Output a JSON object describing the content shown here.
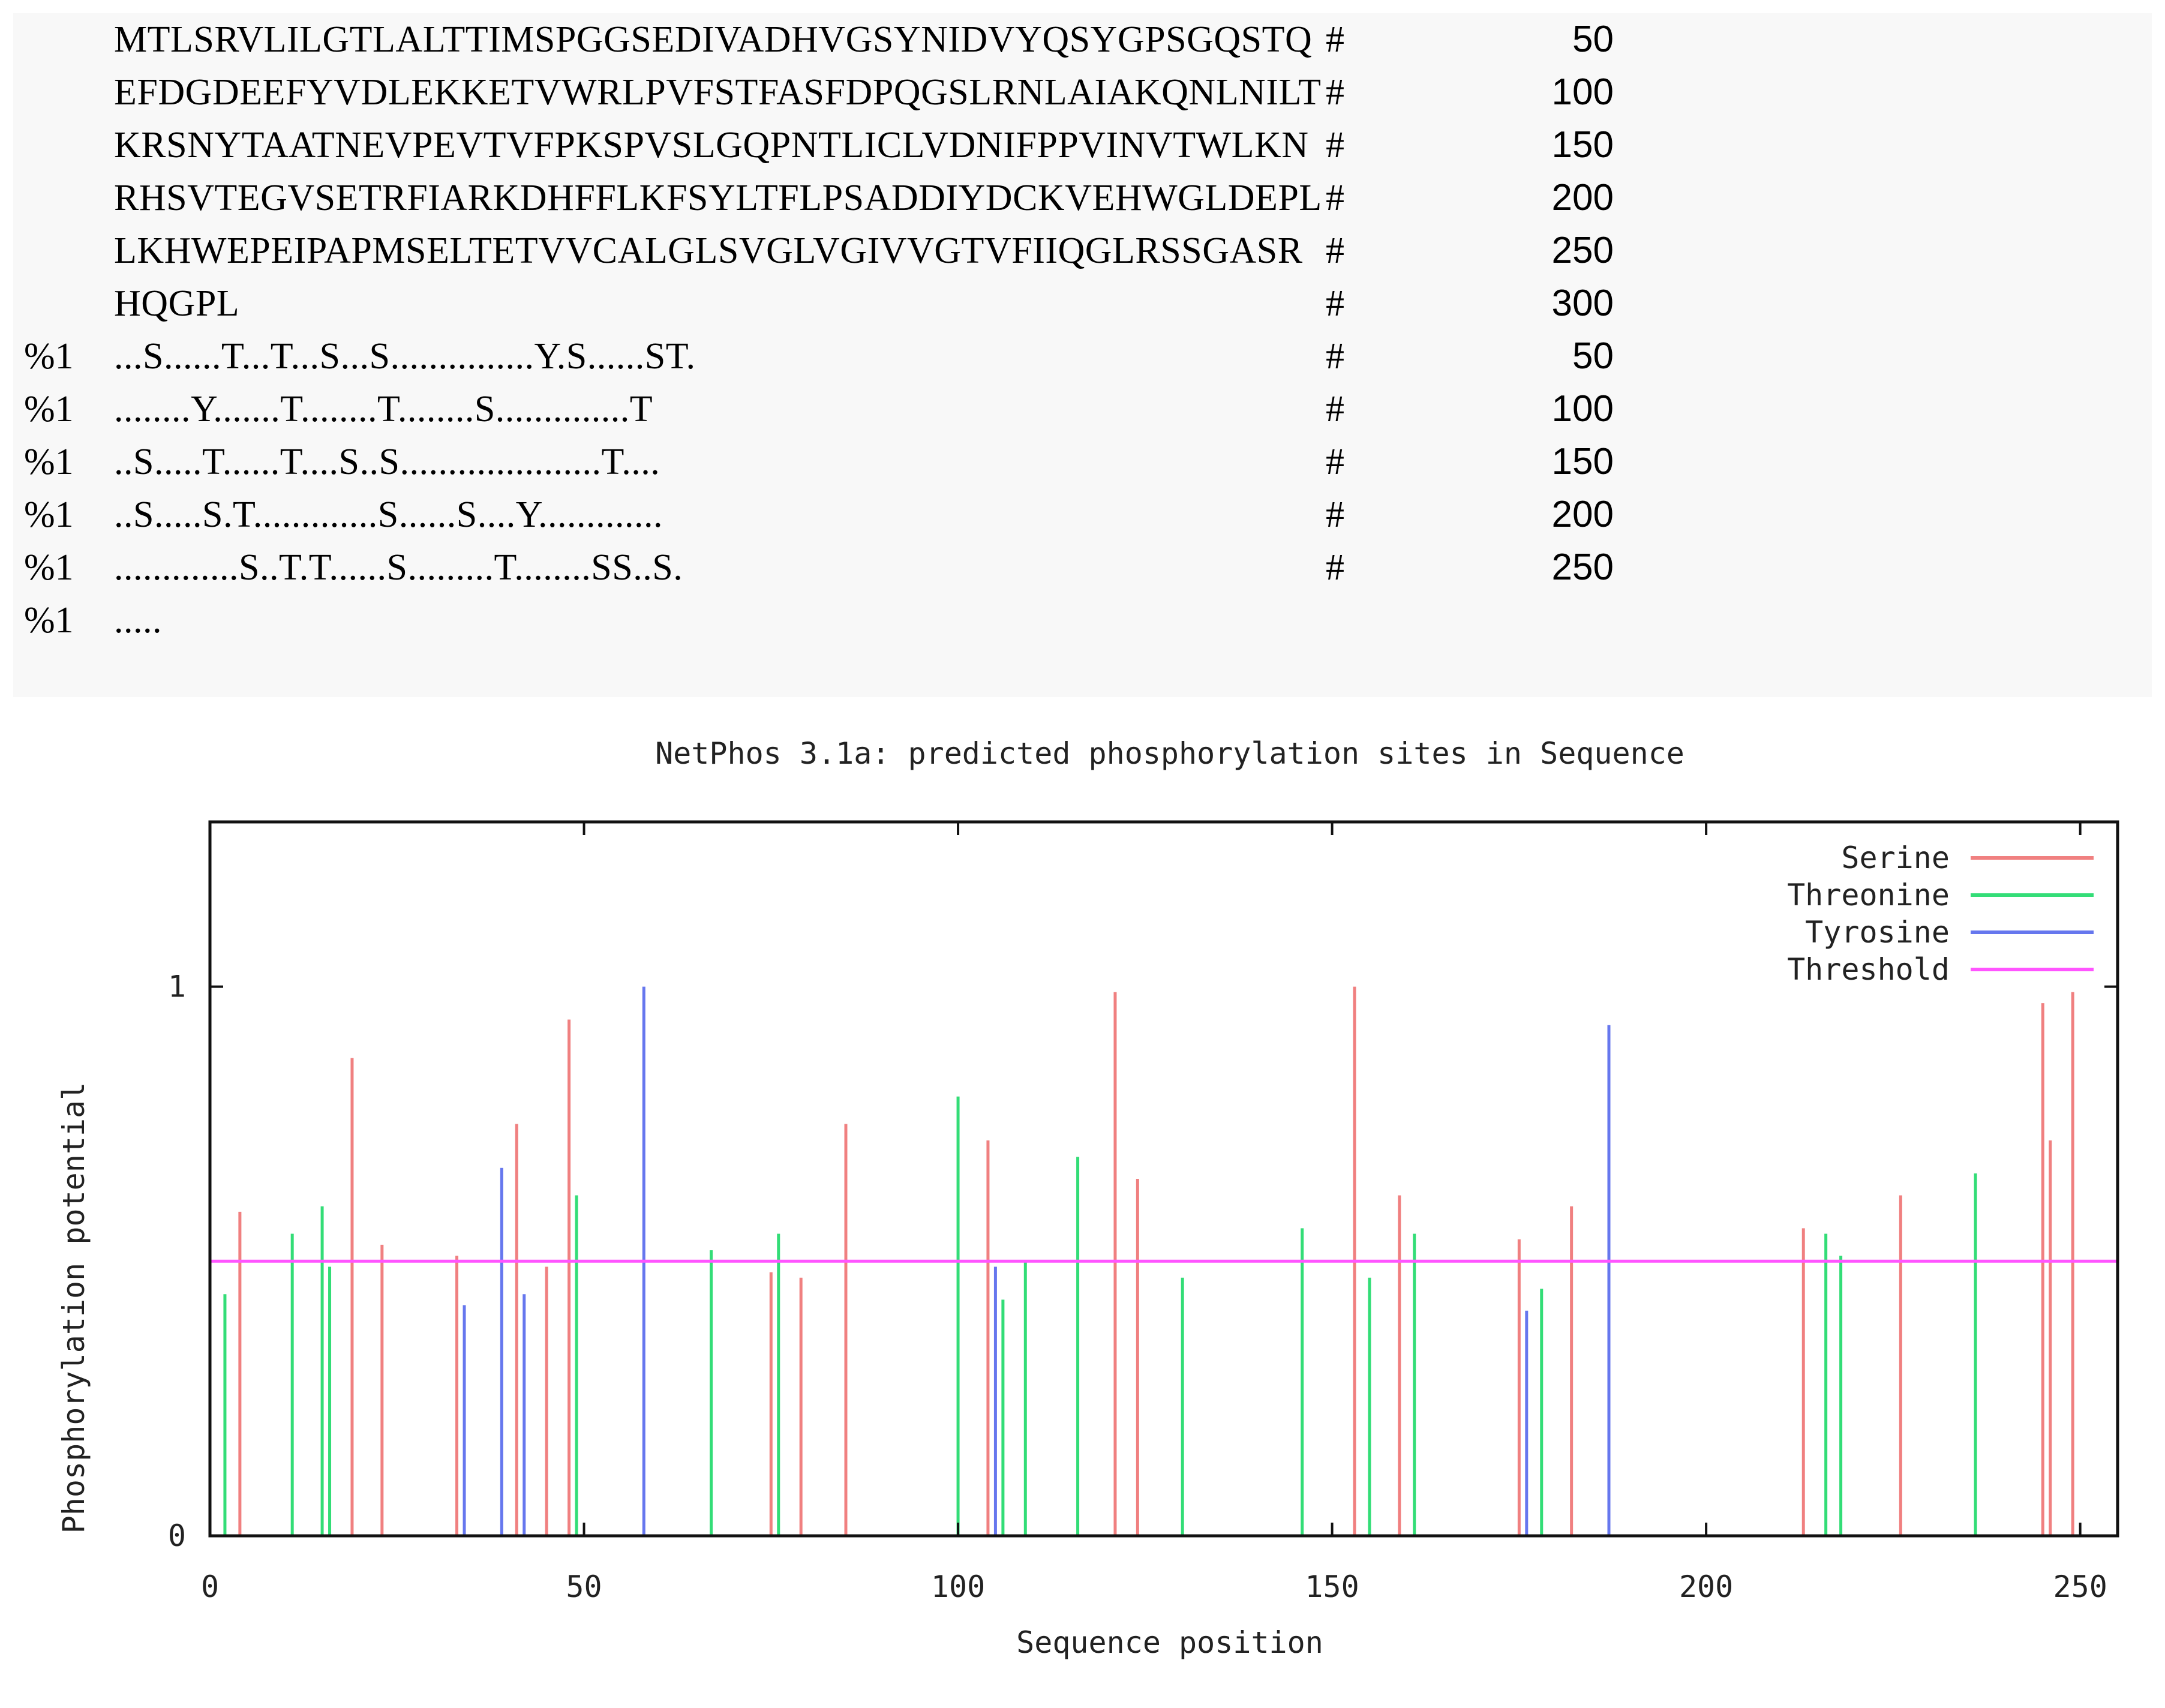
{
  "sequence_block": {
    "rows": [
      {
        "tag": "",
        "seq": "MTLSRVLILGTLALTTIMSPGGSEDIVADHVGSYNIDVYQSYGPSGQSTQ",
        "num": "50"
      },
      {
        "tag": "",
        "seq": "EFDGDEEFYVDLEKKETVWRLPVFSTFASFDPQGSLRNLAIAKQNLNILT",
        "num": "100"
      },
      {
        "tag": "",
        "seq": "KRSNYTAATNEVPEVTVFPKSPVSLGQPNTLICLVDNIFPPVINVTWLKN",
        "num": "150"
      },
      {
        "tag": "",
        "seq": "RHSVTEGVSETRFIARKDHFFLKFSYLTFLPSADDIYDCKVEHWGLDEPL",
        "num": "200"
      },
      {
        "tag": "",
        "seq": "LKHWEPEIPAPMSELTETVVCALGLSVGLVGIVVGTVFIIQGLRSSGASR",
        "num": "250"
      },
      {
        "tag": "",
        "seq": "HQGPL",
        "num": "300"
      },
      {
        "tag": "%1",
        "seq": "...S......T...T...S...S...............Y.S......ST.",
        "num": "50"
      },
      {
        "tag": "%1",
        "seq": "........Y.......T........T........S..............T",
        "num": "100"
      },
      {
        "tag": "%1",
        "seq": "..S.....T......T....S..S.....................T....",
        "num": "150"
      },
      {
        "tag": "%1",
        "seq": "..S.....S.T.............S......S....Y.............",
        "num": "200"
      },
      {
        "tag": "%1",
        "seq": ".............S..T.T......S.........T........SS..S.",
        "num": "250"
      },
      {
        "tag": "%1",
        "seq": ".....",
        "num": ""
      }
    ],
    "hash_symbol": "#"
  },
  "chart_data": {
    "type": "bar",
    "title": "NetPhos 3.1a: predicted phosphorylation sites in Sequence",
    "xlabel": "Sequence position",
    "ylabel": "Phosphorylation potential",
    "xlim": [
      0,
      255
    ],
    "ylim": [
      0,
      1.3
    ],
    "x_ticks": [
      0,
      50,
      100,
      150,
      200,
      250
    ],
    "y_ticks": [
      0,
      1
    ],
    "grid": false,
    "legend_position": "top-right",
    "threshold": 0.5,
    "colors": {
      "Serine": "#f08080",
      "Threonine": "#33dd77",
      "Tyrosine": "#6677ee",
      "Threshold": "#ff55ff"
    },
    "series": [
      {
        "name": "Serine",
        "points": [
          [
            4,
            0.59
          ],
          [
            19,
            0.87
          ],
          [
            23,
            0.53
          ],
          [
            33,
            0.51
          ],
          [
            41,
            0.75
          ],
          [
            45,
            0.49
          ],
          [
            48,
            0.94
          ],
          [
            75,
            0.48
          ],
          [
            79,
            0.47
          ],
          [
            85,
            0.75
          ],
          [
            104,
            0.72
          ],
          [
            121,
            0.99
          ],
          [
            124,
            0.65
          ],
          [
            153,
            1.0
          ],
          [
            159,
            0.62
          ],
          [
            175,
            0.54
          ],
          [
            182,
            0.6
          ],
          [
            213,
            0.56
          ],
          [
            226,
            0.62
          ],
          [
            245,
            0.97
          ],
          [
            246,
            0.72
          ],
          [
            249,
            0.99
          ]
        ]
      },
      {
        "name": "Threonine",
        "points": [
          [
            2,
            0.44
          ],
          [
            11,
            0.55
          ],
          [
            15,
            0.6
          ],
          [
            16,
            0.49
          ],
          [
            49,
            0.62
          ],
          [
            67,
            0.52
          ],
          [
            76,
            0.55
          ],
          [
            100,
            0.8
          ],
          [
            106,
            0.43
          ],
          [
            109,
            0.5
          ],
          [
            116,
            0.69
          ],
          [
            130,
            0.47
          ],
          [
            146,
            0.56
          ],
          [
            155,
            0.47
          ],
          [
            161,
            0.55
          ],
          [
            178,
            0.45
          ],
          [
            216,
            0.55
          ],
          [
            218,
            0.51
          ],
          [
            236,
            0.66
          ]
        ]
      },
      {
        "name": "Tyrosine",
        "points": [
          [
            34,
            0.42
          ],
          [
            39,
            0.67
          ],
          [
            42,
            0.44
          ],
          [
            58,
            1.0
          ],
          [
            105,
            0.49
          ],
          [
            176,
            0.41
          ],
          [
            187,
            0.93
          ]
        ]
      }
    ]
  }
}
